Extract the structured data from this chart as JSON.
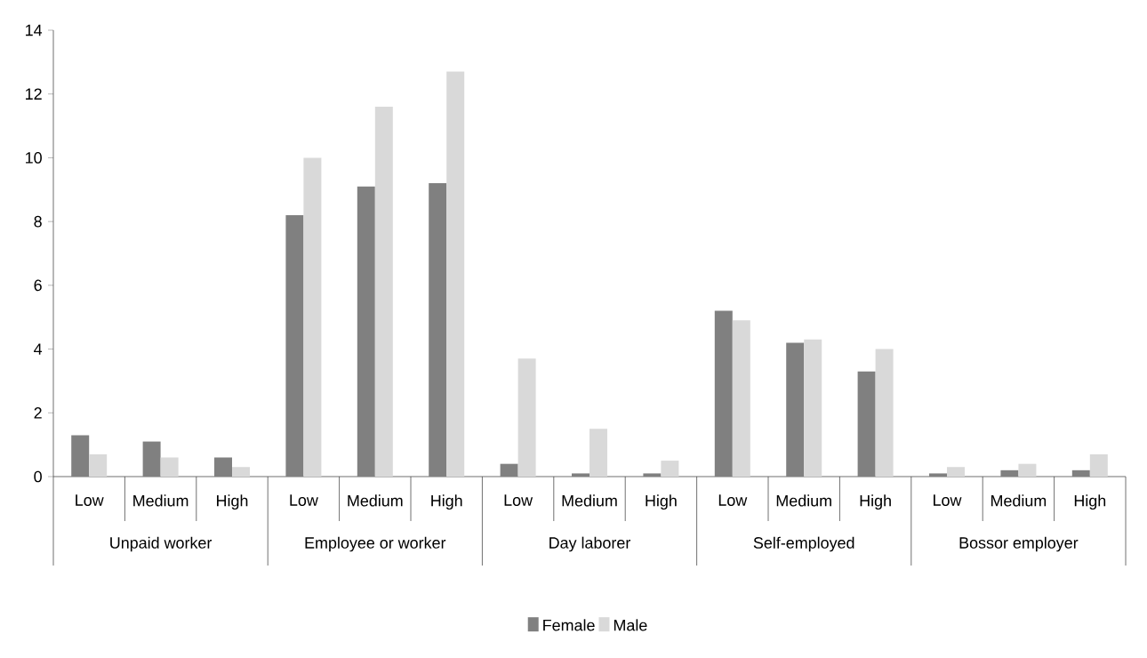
{
  "chart_data": {
    "type": "bar",
    "categories": [
      "Low",
      "Medium",
      "High",
      "Low",
      "Medium",
      "High",
      "Low",
      "Medium",
      "High",
      "Low",
      "Medium",
      "High",
      "Low",
      "Medium",
      "High"
    ],
    "annotations": [
      "Unpaid worker",
      "Employee or worker",
      "Day laborer",
      "Self-employed",
      "Bossor employer"
    ],
    "series": [
      {
        "name": "Female",
        "color": "#808080",
        "values": [
          1.3,
          1.1,
          0.6,
          8.2,
          9.1,
          9.2,
          0.4,
          0.1,
          0.1,
          5.2,
          4.2,
          3.3,
          0.1,
          0.2,
          0.2
        ]
      },
      {
        "name": "Male",
        "color": "#d9d9d9",
        "values": [
          0.7,
          0.6,
          0.3,
          10.0,
          11.6,
          12.7,
          3.7,
          1.5,
          0.5,
          4.9,
          4.3,
          4.0,
          0.3,
          0.4,
          0.7
        ]
      }
    ],
    "ylim": [
      0,
      14
    ],
    "yticks": [
      0,
      2,
      4,
      6,
      8,
      10,
      12,
      14
    ],
    "legend": "bottom"
  }
}
